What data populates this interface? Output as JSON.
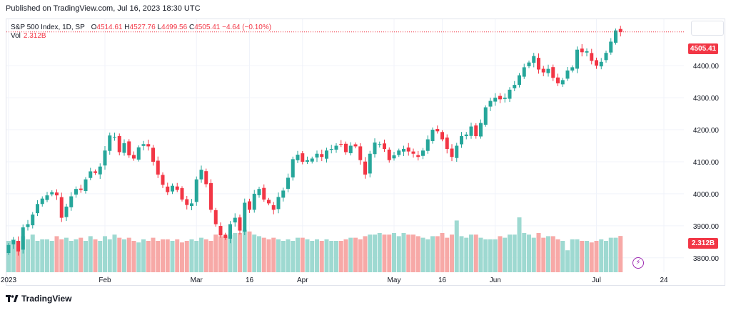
{
  "header": {
    "published": "Published on TradingView.com, Jul 16, 2023 18:30 UTC"
  },
  "legend": {
    "symbol": "S&P 500 Index, 1D, SP",
    "o_label": "O",
    "o_value": "4514.61",
    "h_label": "H",
    "h_value": "4527.76",
    "l_label": "L",
    "l_value": "4499.56",
    "c_label": "C",
    "c_value": "4505.41",
    "change": "−4.64 (−0.10%)"
  },
  "volume": {
    "label": "Vol",
    "value": "2.312B"
  },
  "footer": {
    "brand": "TradingView"
  },
  "colors": {
    "up": "#26a69a",
    "down": "#f23645",
    "vol_up": "#9ed9d1",
    "vol_down": "#f7a9a7",
    "grid": "#f0f3fa"
  },
  "chart_data": {
    "type": "candlestick",
    "title": "S&P 500 Index, 1D, SP",
    "ylim": [
      3755,
      4545
    ],
    "y_ticks": [
      3800,
      3900,
      4000,
      4100,
      4200,
      4300,
      4400
    ],
    "y_tick_labels": [
      "3800.00",
      "3900.00",
      "4000.00",
      "4100.00",
      "4200.00",
      "4300.00",
      "4400.00"
    ],
    "x_ticks": [
      {
        "label": "2023",
        "index": 0
      },
      {
        "label": "Feb",
        "index": 20
      },
      {
        "label": "Mar",
        "index": 39
      },
      {
        "label": "16",
        "index": 50
      },
      {
        "label": "Apr",
        "index": 61
      },
      {
        "label": "May",
        "index": 80
      },
      {
        "label": "16",
        "index": 90
      },
      {
        "label": "Jun",
        "index": 101
      },
      {
        "label": "Jul",
        "index": 122
      },
      {
        "label": "24",
        "index": 136
      }
    ],
    "last_price": 4505.41,
    "last_price_label": "4505.41",
    "last_volume_label": "2.312B",
    "closes": [
      3840,
      3855,
      3820,
      3895,
      3905,
      3935,
      3968,
      3985,
      3995,
      4005,
      3995,
      3925,
      3960,
      3992,
      4015,
      4012,
      4045,
      4070,
      4065,
      4085,
      4135,
      4182,
      4178,
      4130,
      4158,
      4120,
      4110,
      4145,
      4155,
      4148,
      4100,
      4060,
      4028,
      4005,
      4025,
      4012,
      3982,
      3965,
      3970,
      4045,
      4075,
      4030,
      3950,
      3905,
      3870,
      3862,
      3905,
      3925,
      3885,
      3972,
      3950,
      4000,
      4015,
      3982,
      3970,
      3950,
      3990,
      4010,
      4050,
      4108,
      4122,
      4100,
      4105,
      4110,
      4125,
      4115,
      4135,
      4140,
      4150,
      4155,
      4130,
      4150,
      4148,
      4105,
      4060,
      4125,
      4160,
      4155,
      4140,
      4105,
      4120,
      4135,
      4140,
      4132,
      4125,
      4115,
      4135,
      4170,
      4200,
      4195,
      4170,
      4140,
      4115,
      4150,
      4180,
      4185,
      4210,
      4180,
      4221,
      4270,
      4290,
      4300,
      4295,
      4300,
      4325,
      4340,
      4370,
      4395,
      4410,
      4430,
      4388,
      4379,
      4390,
      4362,
      4345,
      4355,
      4385,
      4395,
      4450,
      4442,
      4445,
      4415,
      4400,
      4412,
      4440,
      4475,
      4510,
      4505.41
    ],
    "volumes": [
      2.0,
      2.1,
      2.0,
      2.3,
      2.1,
      2.4,
      2.0,
      2.1,
      2.1,
      2.0,
      2.3,
      2.1,
      2.2,
      2.0,
      2.1,
      2.2,
      2.0,
      2.3,
      2.1,
      2.0,
      2.3,
      2.1,
      2.4,
      2.2,
      2.1,
      2.2,
      2.0,
      1.9,
      2.1,
      2.0,
      2.2,
      2.0,
      2.1,
      2.1,
      2.0,
      2.1,
      1.9,
      2.0,
      2.1,
      2.0,
      2.2,
      2.1,
      2.0,
      2.4,
      2.3,
      2.3,
      2.4,
      2.5,
      2.5,
      2.7,
      2.6,
      2.4,
      2.3,
      2.2,
      2.1,
      2.2,
      2.1,
      2.0,
      2.1,
      2.0,
      2.2,
      2.2,
      2.1,
      2.0,
      2.1,
      2.0,
      2.1,
      2.0,
      2.0,
      2.0,
      2.1,
      2.2,
      2.2,
      2.1,
      2.3,
      2.4,
      2.4,
      2.5,
      2.4,
      2.4,
      2.5,
      2.3,
      2.5,
      2.4,
      2.4,
      2.3,
      2.2,
      2.1,
      2.3,
      2.3,
      2.5,
      2.2,
      2.4,
      3.3,
      2.3,
      2.2,
      2.4,
      2.4,
      2.2,
      2.1,
      2.1,
      2.1,
      2.3,
      2.2,
      2.4,
      2.4,
      3.5,
      2.5,
      2.4,
      2.2,
      2.5,
      2.2,
      2.3,
      2.3,
      2.1,
      2.0,
      1.4,
      2.1,
      2.1,
      2.0,
      2.0,
      1.9,
      2.0,
      2.1,
      2.0,
      2.2,
      2.2,
      2.312
    ]
  }
}
